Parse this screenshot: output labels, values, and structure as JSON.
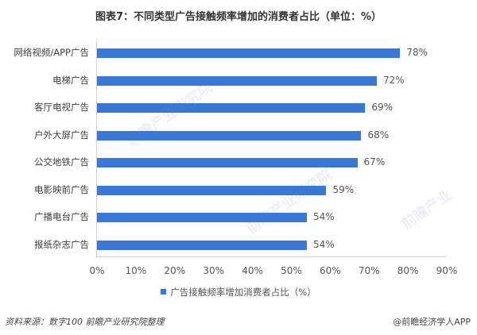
{
  "title": "图表7：不同类型广告接触频率增加的消费者占比（单位：%）",
  "chart_data": {
    "type": "bar",
    "orientation": "horizontal",
    "title": "图表7：不同类型广告接触频率增加的消费者占比（单位：%）",
    "categories": [
      "网络视频/APP广告",
      "电梯广告",
      "客厅电视广告",
      "户外大屏广告",
      "公交地铁广告",
      "电影映前广告",
      "广播电台广告",
      "报纸杂志广告"
    ],
    "series": [
      {
        "name": "广告接触频率增加消费者占比（%）",
        "values": [
          78,
          72,
          69,
          68,
          67,
          59,
          54,
          54
        ],
        "color": "#3a78d8"
      }
    ],
    "value_labels": [
      "78%",
      "72%",
      "69%",
      "68%",
      "67%",
      "59%",
      "54%",
      "54%"
    ],
    "xlabel": "",
    "ylabel": "",
    "xlim": [
      0,
      90
    ],
    "x_ticks": [
      "0%",
      "10%",
      "20%",
      "30%",
      "40%",
      "50%",
      "60%",
      "70%",
      "80%",
      "90%"
    ],
    "grid": false,
    "legend_position": "bottom"
  },
  "legend": {
    "label": "广告接触频率增加消费者占比（%）"
  },
  "footer": {
    "source": "资料来源：数字100  前瞻产业研究院整理",
    "credit": "@前瞻经济学人APP"
  }
}
